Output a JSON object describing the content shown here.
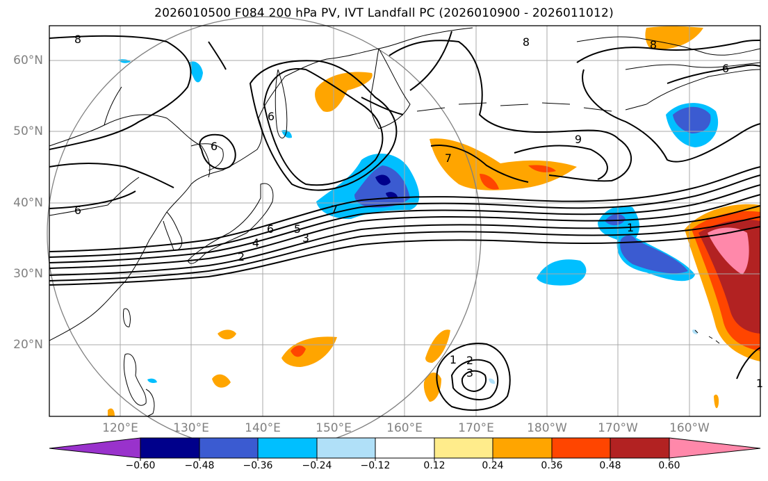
{
  "title": "2026010500 F084 200 hPa PV, IVT Landfall PC (2026010900 - 2026011012)",
  "map": {
    "lat_labels": [
      "60°N",
      "50°N",
      "40°N",
      "30°N",
      "20°N"
    ],
    "lon_labels": [
      "120°E",
      "130°E",
      "140°E",
      "150°E",
      "160°E",
      "170°E",
      "180°W",
      "170°W",
      "160°W"
    ],
    "contour_labels": [
      "8",
      "8",
      "8",
      "6",
      "6",
      "6",
      "6",
      "9",
      "7",
      "7",
      "6",
      "5",
      "4",
      "3",
      "2",
      "1",
      "1",
      "2",
      "3",
      "1"
    ]
  },
  "colorbar": {
    "tick_labels": [
      "−0.60",
      "−0.48",
      "−0.36",
      "−0.24",
      "−0.12",
      "0.12",
      "0.24",
      "0.36",
      "0.48",
      "0.60"
    ],
    "colors": [
      "#9932cc",
      "#00008b",
      "#3b5bd1",
      "#00bfff",
      "#b0e0f8",
      "#ffffff",
      "#ffec8b",
      "#ffa500",
      "#ff4500",
      "#b22222",
      "#ff88aa"
    ]
  }
}
